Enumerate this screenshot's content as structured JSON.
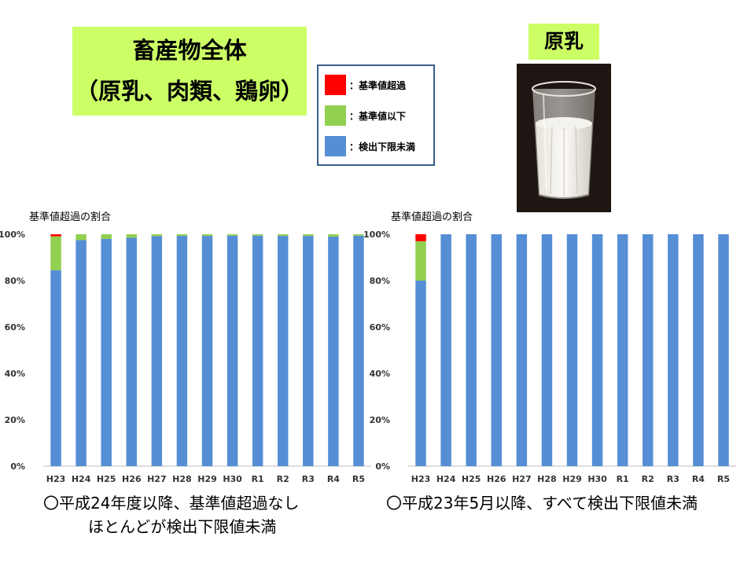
{
  "title": {
    "line1": "畜産物全体",
    "line2": "（原乳、肉類、鶏卵）"
  },
  "legend": [
    {
      "label": "：基準値超過",
      "color": "#ff0000"
    },
    {
      "label": "：基準値以下",
      "color": "#92d050"
    },
    {
      "label": "：検出下限未満",
      "color": "#558ed5"
    }
  ],
  "milk_label": "原乳",
  "chart_data": [
    {
      "type": "bar",
      "stacked": true,
      "title": "基準値超過の割合",
      "categories": [
        "H23",
        "H24",
        "H25",
        "H26",
        "H27",
        "H28",
        "H29",
        "H30",
        "R1",
        "R2",
        "R3",
        "R4",
        "R5"
      ],
      "series": [
        {
          "name": "：検出下限未満",
          "color": "#558ed5",
          "values": [
            84.5,
            97.5,
            98,
            98.5,
            99.2,
            99.3,
            99.3,
            99.4,
            99.4,
            99.3,
            99.3,
            99,
            99.4
          ]
        },
        {
          "name": "：基準値以下",
          "color": "#92d050",
          "values": [
            14.6,
            2.5,
            2,
            1.5,
            0.8,
            0.7,
            0.7,
            0.6,
            0.6,
            0.7,
            0.7,
            1,
            0.6
          ]
        },
        {
          "name": "：基準値超過",
          "color": "#ff0000",
          "values": [
            0.9,
            0,
            0,
            0,
            0,
            0,
            0,
            0,
            0,
            0,
            0,
            0,
            0
          ]
        }
      ],
      "yticks": [
        "0%",
        "20%",
        "40%",
        "60%",
        "80%",
        "100%"
      ],
      "ylim": [
        0,
        100
      ],
      "grid": false
    },
    {
      "type": "bar",
      "stacked": true,
      "title": "基準値超過の割合",
      "categories": [
        "H23",
        "H24",
        "H25",
        "H26",
        "H27",
        "H28",
        "H29",
        "H30",
        "R1",
        "R2",
        "R3",
        "R4",
        "R5"
      ],
      "series": [
        {
          "name": "：検出下限未満",
          "color": "#558ed5",
          "values": [
            80,
            100,
            100,
            100,
            100,
            100,
            100,
            100,
            100,
            100,
            100,
            100,
            100
          ]
        },
        {
          "name": "：基準値以下",
          "color": "#92d050",
          "values": [
            17,
            0,
            0,
            0,
            0,
            0,
            0,
            0,
            0,
            0,
            0,
            0,
            0
          ]
        },
        {
          "name": "：基準値超過",
          "color": "#ff0000",
          "values": [
            3,
            0,
            0,
            0,
            0,
            0,
            0,
            0,
            0,
            0,
            0,
            0,
            0
          ]
        }
      ],
      "yticks": [
        "0%",
        "20%",
        "40%",
        "60%",
        "80%",
        "100%"
      ],
      "ylim": [
        0,
        100
      ],
      "grid": false
    }
  ],
  "notes": {
    "left_line1": "〇平成24年度以降、基準値超過なし",
    "left_line2": "ほとんどが検出下限値未満",
    "right_line1": "〇平成23年5月以降、すべて検出下限値未満"
  }
}
